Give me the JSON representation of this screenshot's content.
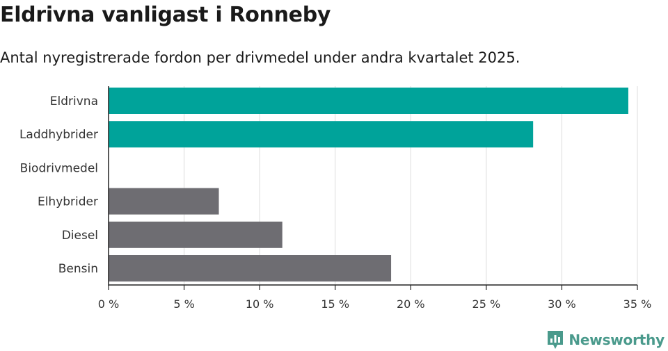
{
  "header": {
    "title": "Eldrivna vanligast i Ronneby",
    "subtitle": "Antal nyregistrerade fordon per drivmedel under andra kvartalet 2025."
  },
  "brand": {
    "name": "Newsworthy",
    "logo_icon": "bar-chart-logo-icon",
    "color": "#4a9a8c"
  },
  "chart_data": {
    "type": "bar",
    "orientation": "horizontal",
    "categories": [
      "Eldrivna",
      "Laddhybrider",
      "Biodrivmedel",
      "Elhybrider",
      "Diesel",
      "Bensin"
    ],
    "values": [
      34.4,
      28.1,
      0,
      7.3,
      11.5,
      18.7
    ],
    "colors": [
      "#00a39a",
      "#00a39a",
      "#00a39a",
      "#6e6d72",
      "#6e6d72",
      "#6e6d72"
    ],
    "xlim": [
      0,
      35
    ],
    "xticks": [
      0,
      5,
      10,
      15,
      20,
      25,
      30,
      35
    ],
    "xtick_labels": [
      "0 %",
      "5 %",
      "10 %",
      "15 %",
      "20 %",
      "25 %",
      "30 %",
      "35 %"
    ],
    "grid": true,
    "xlabel": "",
    "ylabel": ""
  }
}
